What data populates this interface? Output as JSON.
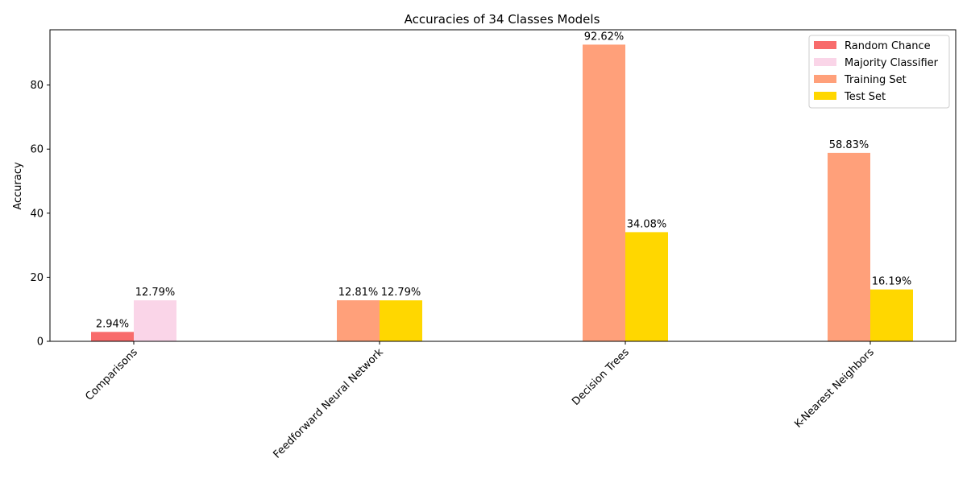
{
  "chart_data": {
    "type": "bar",
    "title": "Accuracies of 34 Classes Models",
    "xlabel": "",
    "ylabel": "Accuracy",
    "ylim": [
      0,
      97.25
    ],
    "yticks": [
      0,
      20,
      40,
      60,
      80
    ],
    "grid": false,
    "legend_position": "top-right",
    "categories": [
      "Comparisons",
      "Feedforward Neural Network",
      "Decision Trees",
      "K-Nearest Neighbors"
    ],
    "series": [
      {
        "name": "Random Chance",
        "color": "#f86b6b",
        "slot": 0,
        "values": [
          2.94,
          null,
          null,
          null
        ]
      },
      {
        "name": "Majority Classifier",
        "color": "#fad5e8",
        "slot": 1,
        "values": [
          12.79,
          null,
          null,
          null
        ]
      },
      {
        "name": "Training Set",
        "color": "#ffa07a",
        "slot": 0,
        "values": [
          null,
          12.81,
          92.62,
          58.83
        ]
      },
      {
        "name": "Test Set",
        "color": "#ffd700",
        "slot": 1,
        "values": [
          null,
          12.79,
          34.08,
          16.19
        ]
      }
    ],
    "value_labels": {
      "Random Chance": [
        "2.94%",
        "",
        "",
        ""
      ],
      "Majority Classifier": [
        "12.79%",
        "",
        "",
        ""
      ],
      "Training Set": [
        "",
        "12.81%",
        "92.62%",
        "58.83%"
      ],
      "Test Set": [
        "",
        "12.79%",
        "34.08%",
        "16.19%"
      ]
    }
  }
}
